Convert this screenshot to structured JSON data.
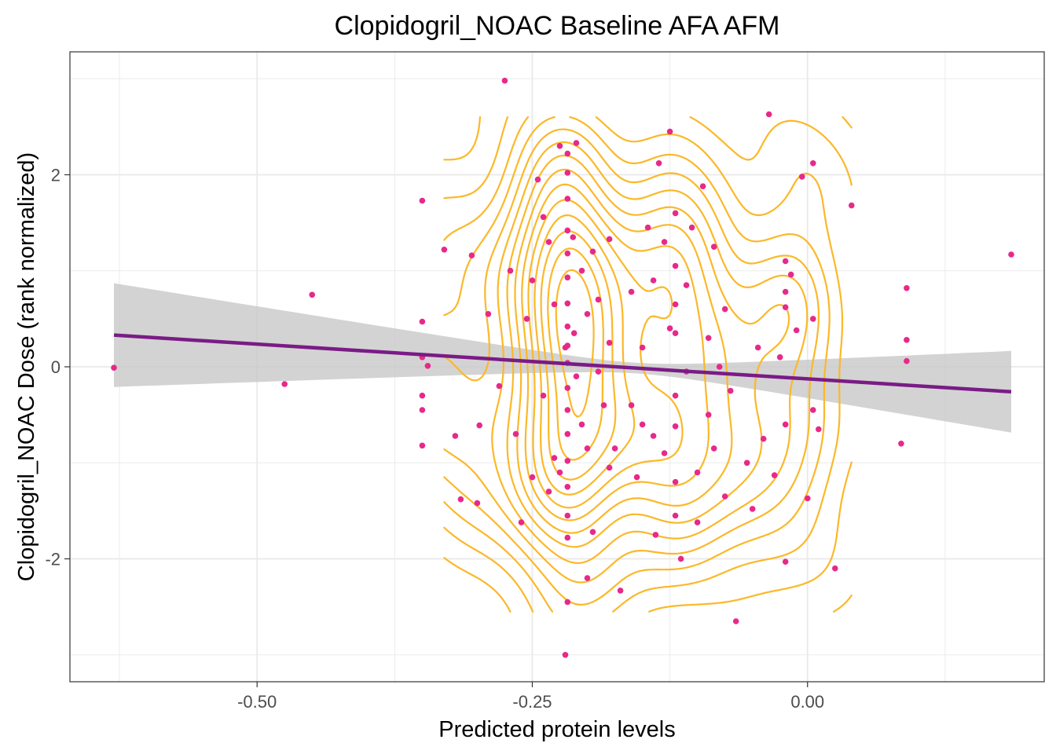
{
  "chart_data": {
    "type": "scatter",
    "title": "Clopidogril_NOAC Baseline AFA AFM",
    "xlabel": "Predicted protein levels",
    "ylabel": "Clopidogril_NOAC Dose (rank normalized)",
    "xlim": [
      -0.67,
      0.215
    ],
    "ylim": [
      -3.28,
      3.28
    ],
    "x_ticks": [
      -0.5,
      -0.25,
      0.0
    ],
    "x_tick_labels": [
      "-0.50",
      "-0.25",
      "0.00"
    ],
    "y_ticks": [
      -2,
      0,
      2
    ],
    "y_tick_labels": [
      "-2",
      "0",
      "2"
    ],
    "grid": true,
    "legend": "none",
    "colors": {
      "points": "#e7298a",
      "regression_line": "#7a1b86",
      "confidence_band": "#c8c8c8",
      "density_contours": "#fbb829",
      "grid": "#ebebeb",
      "panel_border": "#333333"
    },
    "regression": {
      "x": [
        -0.63,
        0.185
      ],
      "y": [
        0.33,
        -0.26
      ],
      "ci_lower": [
        -0.21,
        -0.68
      ],
      "ci_upper": [
        0.87,
        0.17
      ]
    },
    "points": [
      [
        -0.63,
        -0.01
      ],
      [
        -0.475,
        -0.18
      ],
      [
        -0.45,
        0.75
      ],
      [
        -0.35,
        1.73
      ],
      [
        -0.35,
        0.47
      ],
      [
        -0.35,
        0.1
      ],
      [
        -0.35,
        -0.3
      ],
      [
        -0.35,
        -0.45
      ],
      [
        -0.35,
        -0.82
      ],
      [
        -0.345,
        0.01
      ],
      [
        -0.33,
        1.22
      ],
      [
        -0.32,
        -0.72
      ],
      [
        -0.315,
        -1.38
      ],
      [
        -0.305,
        1.16
      ],
      [
        -0.3,
        -1.42
      ],
      [
        -0.298,
        -0.61
      ],
      [
        -0.29,
        0.55
      ],
      [
        -0.28,
        -0.2
      ],
      [
        -0.275,
        2.98
      ],
      [
        -0.27,
        1.0
      ],
      [
        -0.265,
        -0.7
      ],
      [
        -0.26,
        -1.62
      ],
      [
        -0.255,
        0.5
      ],
      [
        -0.25,
        0.9
      ],
      [
        -0.25,
        -1.15
      ],
      [
        -0.245,
        1.95
      ],
      [
        -0.24,
        1.56
      ],
      [
        -0.24,
        -0.3
      ],
      [
        -0.235,
        1.3
      ],
      [
        -0.235,
        -1.3
      ],
      [
        -0.23,
        0.65
      ],
      [
        -0.23,
        -0.95
      ],
      [
        -0.225,
        2.3
      ],
      [
        -0.225,
        -1.1
      ],
      [
        -0.22,
        -3.0
      ],
      [
        -0.22,
        0.2
      ],
      [
        -0.218,
        2.22
      ],
      [
        -0.218,
        2.02
      ],
      [
        -0.218,
        1.75
      ],
      [
        -0.218,
        1.42
      ],
      [
        -0.218,
        1.18
      ],
      [
        -0.218,
        0.93
      ],
      [
        -0.218,
        0.66
      ],
      [
        -0.218,
        0.42
      ],
      [
        -0.218,
        0.22
      ],
      [
        -0.218,
        0.04
      ],
      [
        -0.218,
        -0.22
      ],
      [
        -0.218,
        -0.45
      ],
      [
        -0.218,
        -0.7
      ],
      [
        -0.218,
        -0.98
      ],
      [
        -0.218,
        -1.25
      ],
      [
        -0.218,
        -1.55
      ],
      [
        -0.218,
        -1.78
      ],
      [
        -0.218,
        -2.45
      ],
      [
        -0.213,
        1.35
      ],
      [
        -0.212,
        0.35
      ],
      [
        -0.21,
        2.33
      ],
      [
        -0.21,
        -0.1
      ],
      [
        -0.205,
        1.0
      ],
      [
        -0.205,
        -0.6
      ],
      [
        -0.2,
        0.55
      ],
      [
        -0.2,
        -0.85
      ],
      [
        -0.2,
        -2.2
      ],
      [
        -0.195,
        1.2
      ],
      [
        -0.195,
        -1.72
      ],
      [
        -0.19,
        0.7
      ],
      [
        -0.19,
        -0.05
      ],
      [
        -0.185,
        -0.4
      ],
      [
        -0.18,
        1.33
      ],
      [
        -0.18,
        0.25
      ],
      [
        -0.18,
        -1.05
      ],
      [
        -0.175,
        -0.85
      ],
      [
        -0.17,
        -2.33
      ],
      [
        -0.16,
        0.78
      ],
      [
        -0.16,
        -0.4
      ],
      [
        -0.155,
        -1.15
      ],
      [
        -0.15,
        0.2
      ],
      [
        -0.15,
        -0.6
      ],
      [
        -0.145,
        1.45
      ],
      [
        -0.14,
        0.9
      ],
      [
        -0.14,
        -0.72
      ],
      [
        -0.138,
        -1.75
      ],
      [
        -0.135,
        2.12
      ],
      [
        -0.13,
        1.3
      ],
      [
        -0.13,
        -0.9
      ],
      [
        -0.125,
        2.45
      ],
      [
        -0.125,
        0.4
      ],
      [
        -0.12,
        1.6
      ],
      [
        -0.12,
        1.05
      ],
      [
        -0.12,
        0.65
      ],
      [
        -0.12,
        0.35
      ],
      [
        -0.12,
        -0.3
      ],
      [
        -0.12,
        -0.62
      ],
      [
        -0.12,
        -1.2
      ],
      [
        -0.12,
        -1.55
      ],
      [
        -0.115,
        -2.0
      ],
      [
        -0.11,
        0.85
      ],
      [
        -0.11,
        -0.05
      ],
      [
        -0.105,
        1.45
      ],
      [
        -0.1,
        -1.1
      ],
      [
        -0.1,
        -1.62
      ],
      [
        -0.095,
        1.88
      ],
      [
        -0.09,
        0.3
      ],
      [
        -0.09,
        -0.5
      ],
      [
        -0.085,
        1.25
      ],
      [
        -0.085,
        -0.85
      ],
      [
        -0.08,
        0.0
      ],
      [
        -0.075,
        0.6
      ],
      [
        -0.075,
        -1.35
      ],
      [
        -0.07,
        -0.25
      ],
      [
        -0.065,
        -2.65
      ],
      [
        -0.055,
        -1.0
      ],
      [
        -0.05,
        -1.48
      ],
      [
        -0.045,
        0.2
      ],
      [
        -0.04,
        -0.75
      ],
      [
        -0.035,
        2.63
      ],
      [
        -0.03,
        -1.13
      ],
      [
        -0.025,
        0.1
      ],
      [
        -0.02,
        1.1
      ],
      [
        -0.02,
        0.78
      ],
      [
        -0.02,
        0.62
      ],
      [
        -0.02,
        -0.6
      ],
      [
        -0.02,
        -2.03
      ],
      [
        -0.015,
        0.96
      ],
      [
        -0.01,
        0.38
      ],
      [
        -0.005,
        1.98
      ],
      [
        0.0,
        -1.37
      ],
      [
        0.005,
        2.12
      ],
      [
        0.005,
        0.5
      ],
      [
        0.005,
        -0.45
      ],
      [
        0.01,
        -0.65
      ],
      [
        0.025,
        -2.1
      ],
      [
        0.04,
        1.68
      ],
      [
        0.085,
        -0.8
      ],
      [
        0.09,
        0.82
      ],
      [
        0.09,
        0.28
      ],
      [
        0.09,
        0.06
      ],
      [
        0.185,
        1.17
      ]
    ]
  }
}
